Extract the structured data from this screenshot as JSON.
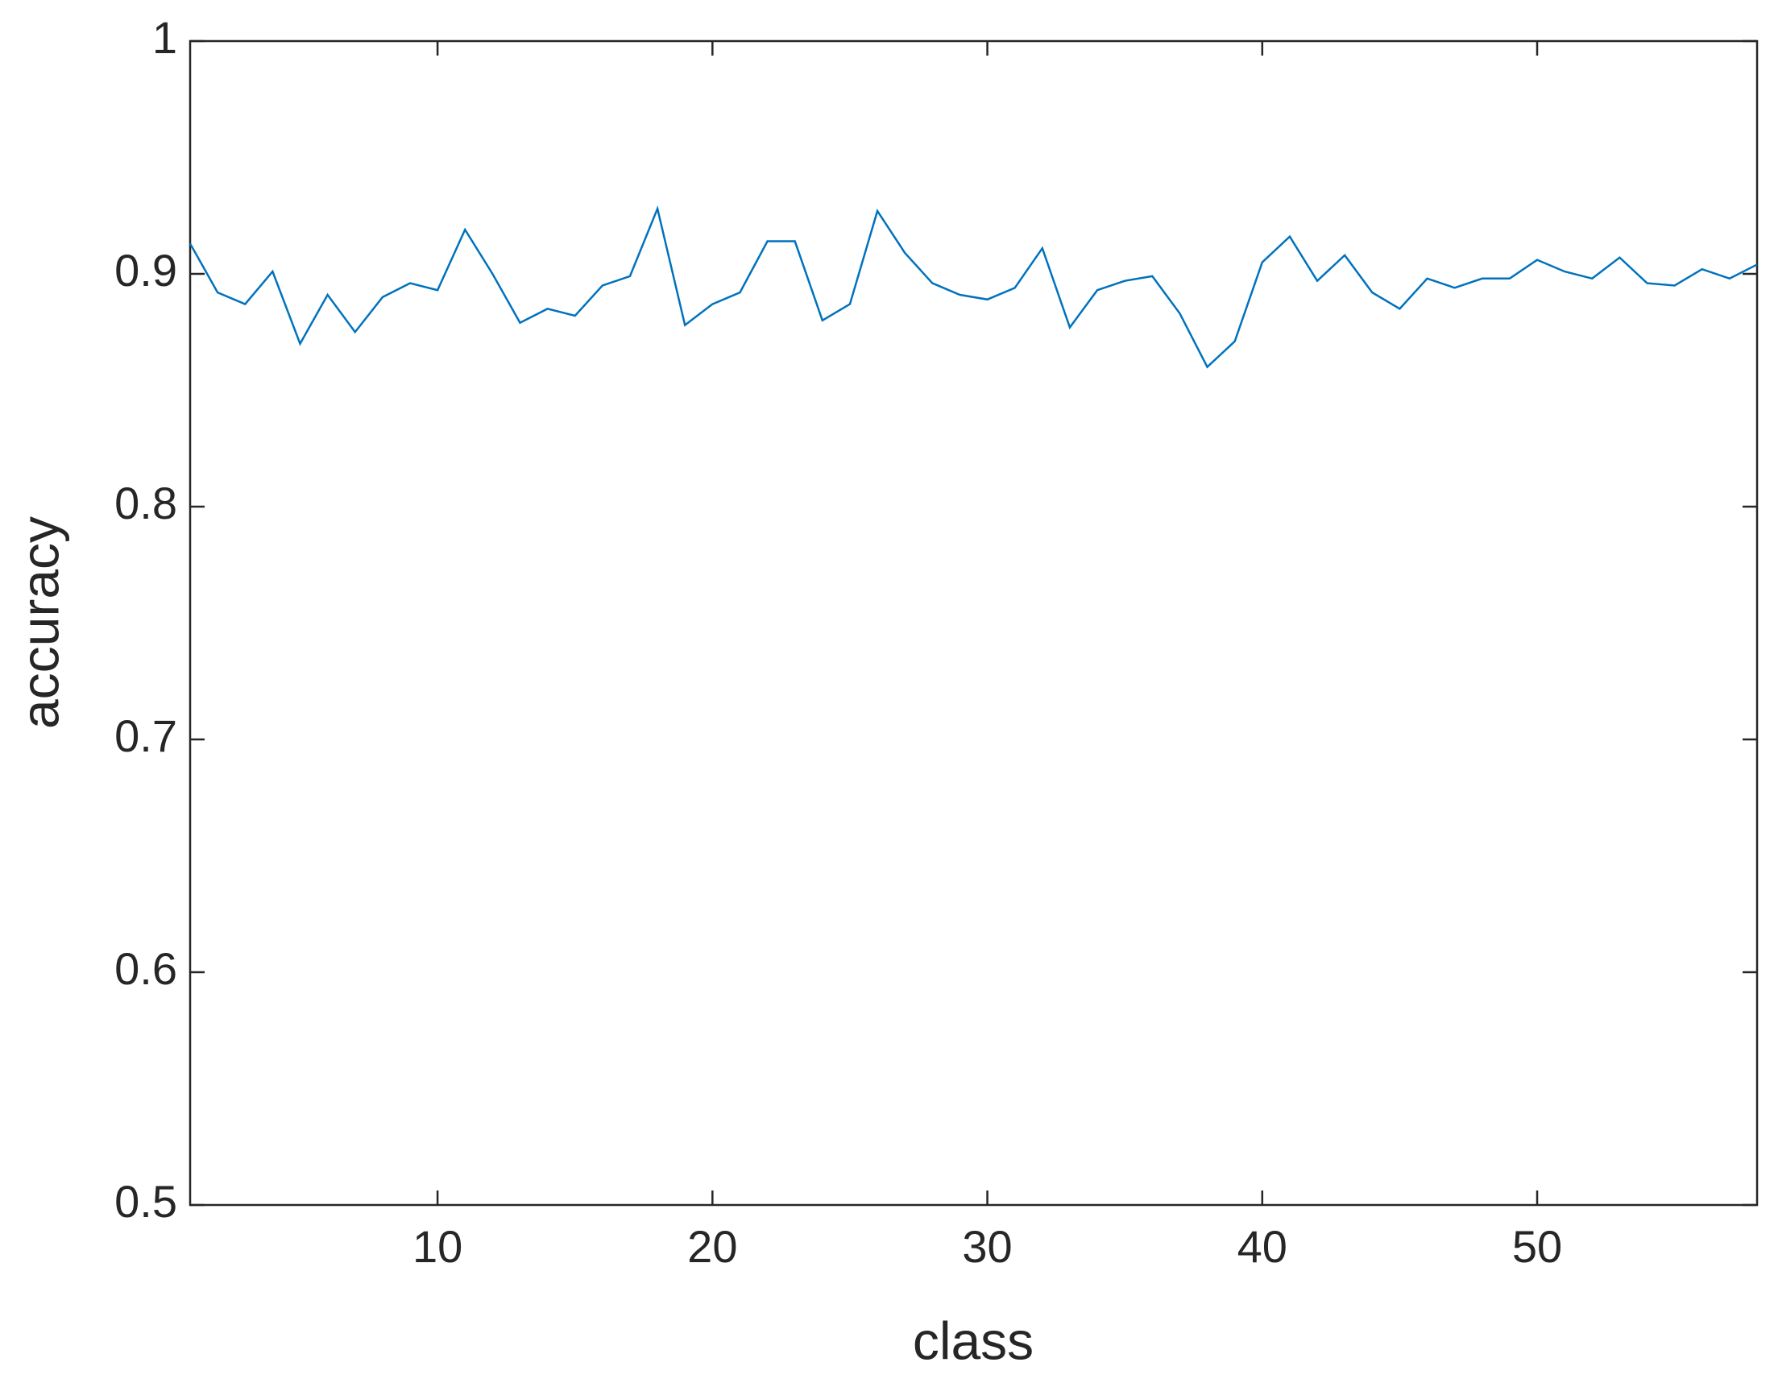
{
  "chart_data": {
    "type": "line",
    "x_label": "class",
    "y_label": "accuracy",
    "x": [
      1,
      2,
      3,
      4,
      5,
      6,
      7,
      8,
      9,
      10,
      11,
      12,
      13,
      14,
      15,
      16,
      17,
      18,
      19,
      20,
      21,
      22,
      23,
      24,
      25,
      26,
      27,
      28,
      29,
      30,
      31,
      32,
      33,
      34,
      35,
      36,
      37,
      38,
      39,
      40,
      41,
      42,
      43,
      44,
      45,
      46,
      47,
      48,
      49,
      50,
      51,
      52,
      53,
      54,
      55,
      56,
      57,
      58
    ],
    "series": [
      {
        "color": "#0072bd",
        "values": [
          0.913,
          0.892,
          0.887,
          0.901,
          0.87,
          0.891,
          0.875,
          0.89,
          0.896,
          0.893,
          0.919,
          0.9,
          0.879,
          0.885,
          0.882,
          0.895,
          0.899,
          0.928,
          0.878,
          0.887,
          0.892,
          0.914,
          0.914,
          0.88,
          0.887,
          0.927,
          0.909,
          0.896,
          0.891,
          0.889,
          0.894,
          0.911,
          0.877,
          0.893,
          0.897,
          0.899,
          0.883,
          0.86,
          0.871,
          0.905,
          0.916,
          0.897,
          0.908,
          0.892,
          0.885,
          0.898,
          0.894,
          0.898,
          0.898,
          0.906,
          0.901,
          0.898,
          0.907,
          0.896,
          0.895,
          0.902,
          0.898,
          0.904
        ]
      }
    ],
    "xlim": [
      1,
      58
    ],
    "xticks": [
      10,
      20,
      30,
      40,
      50
    ],
    "ylim": [
      0.5,
      1
    ],
    "yticks": [
      0.5,
      0.6,
      0.7,
      0.8,
      0.9,
      1
    ]
  }
}
